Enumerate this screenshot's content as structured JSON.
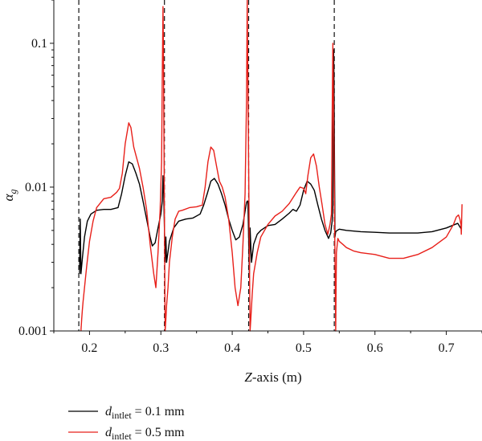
{
  "chart_data": {
    "type": "line",
    "xlabel": "Z-axis (m)",
    "xlabel_italic": "Z",
    "xlabel_rest": "-axis (m)",
    "ylabel": "αg",
    "ylabel_main": "α",
    "ylabel_sub": "g",
    "xscale": "linear",
    "yscale": "log",
    "xlim": [
      0.15,
      0.75
    ],
    "ylim": [
      0.001,
      0.2
    ],
    "xticks": [
      0.2,
      0.3,
      0.4,
      0.5,
      0.6,
      0.7
    ],
    "xtick_labels": [
      "0.2",
      "0.3",
      "0.4",
      "0.5",
      "0.6",
      "0.7"
    ],
    "yticks": [
      0.001,
      0.01,
      0.1
    ],
    "ytick_labels": [
      "0.001",
      "0.01",
      "0.1"
    ],
    "grid": false,
    "legend_position": "below",
    "vertical_dashed_lines": [
      0.185,
      0.305,
      0.423,
      0.543
    ],
    "series": [
      {
        "legend_main": "d",
        "legend_sub": "intlet",
        "legend_value": " = 0.1 mm",
        "color": "#000000",
        "x": [
          0.186,
          0.187,
          0.188,
          0.19,
          0.193,
          0.197,
          0.202,
          0.21,
          0.22,
          0.23,
          0.24,
          0.245,
          0.25,
          0.255,
          0.26,
          0.265,
          0.27,
          0.275,
          0.28,
          0.285,
          0.288,
          0.292,
          0.296,
          0.3,
          0.302,
          0.303,
          0.304,
          0.306,
          0.307,
          0.308,
          0.312,
          0.318,
          0.325,
          0.335,
          0.345,
          0.355,
          0.36,
          0.365,
          0.37,
          0.375,
          0.38,
          0.385,
          0.39,
          0.395,
          0.4,
          0.405,
          0.41,
          0.415,
          0.418,
          0.42,
          0.421,
          0.422,
          0.424,
          0.425,
          0.427,
          0.43,
          0.435,
          0.44,
          0.445,
          0.45,
          0.46,
          0.47,
          0.48,
          0.485,
          0.49,
          0.495,
          0.5,
          0.505,
          0.51,
          0.515,
          0.52,
          0.525,
          0.53,
          0.535,
          0.538,
          0.54,
          0.541,
          0.542,
          0.5425,
          0.544,
          0.545,
          0.547,
          0.55,
          0.56,
          0.58,
          0.6,
          0.62,
          0.64,
          0.66,
          0.68,
          0.7,
          0.712,
          0.716,
          0.718,
          0.72,
          0.721
        ],
        "y": [
          0.0025,
          0.006,
          0.0025,
          0.0032,
          0.0045,
          0.0058,
          0.0065,
          0.0069,
          0.007,
          0.007,
          0.0072,
          0.009,
          0.012,
          0.015,
          0.0145,
          0.0125,
          0.0105,
          0.008,
          0.006,
          0.0045,
          0.0039,
          0.0041,
          0.0052,
          0.0065,
          0.008,
          0.012,
          0.009,
          0.003,
          0.0045,
          0.003,
          0.0042,
          0.0052,
          0.0058,
          0.006,
          0.0061,
          0.0065,
          0.0075,
          0.009,
          0.011,
          0.0115,
          0.0105,
          0.009,
          0.0075,
          0.006,
          0.005,
          0.0043,
          0.0045,
          0.0055,
          0.0068,
          0.0078,
          0.008,
          0.008,
          0.0025,
          0.0052,
          0.003,
          0.004,
          0.0047,
          0.005,
          0.0052,
          0.0054,
          0.0055,
          0.006,
          0.0066,
          0.007,
          0.0068,
          0.0075,
          0.0095,
          0.011,
          0.0105,
          0.0095,
          0.0075,
          0.006,
          0.005,
          0.0044,
          0.0048,
          0.0058,
          0.0075,
          0.09,
          0.06,
          0.0045,
          0.0049,
          0.005,
          0.0051,
          0.005,
          0.0049,
          0.00485,
          0.0048,
          0.0048,
          0.0048,
          0.0049,
          0.0052,
          0.0055,
          0.0056,
          0.0054,
          0.0052,
          0.0051
        ]
      },
      {
        "legend_main": "d",
        "legend_sub": "intlet",
        "legend_value": " = 0.5 mm",
        "color": "#e8201a",
        "x": [
          0.188,
          0.189,
          0.19,
          0.191,
          0.193,
          0.196,
          0.2,
          0.205,
          0.21,
          0.22,
          0.23,
          0.238,
          0.242,
          0.246,
          0.25,
          0.255,
          0.258,
          0.262,
          0.266,
          0.27,
          0.275,
          0.28,
          0.285,
          0.29,
          0.293,
          0.296,
          0.299,
          0.301,
          0.302,
          0.303,
          0.3035,
          0.306,
          0.307,
          0.308,
          0.31,
          0.312,
          0.316,
          0.32,
          0.325,
          0.33,
          0.34,
          0.35,
          0.358,
          0.362,
          0.366,
          0.37,
          0.374,
          0.378,
          0.382,
          0.386,
          0.39,
          0.395,
          0.4,
          0.404,
          0.408,
          0.412,
          0.415,
          0.418,
          0.42,
          0.421,
          0.4215,
          0.425,
          0.426,
          0.428,
          0.43,
          0.435,
          0.44,
          0.45,
          0.46,
          0.47,
          0.48,
          0.49,
          0.495,
          0.5,
          0.503,
          0.506,
          0.51,
          0.514,
          0.518,
          0.522,
          0.526,
          0.53,
          0.534,
          0.537,
          0.539,
          0.54,
          0.541,
          0.545,
          0.546,
          0.548,
          0.55,
          0.555,
          0.56,
          0.57,
          0.58,
          0.6,
          0.62,
          0.64,
          0.66,
          0.68,
          0.7,
          0.71,
          0.714,
          0.717,
          0.719,
          0.7205,
          0.721,
          0.722
        ],
        "y": [
          0.001,
          0.0012,
          0.0014,
          0.0016,
          0.002,
          0.0028,
          0.0042,
          0.0058,
          0.0072,
          0.0083,
          0.0085,
          0.0092,
          0.0098,
          0.0125,
          0.02,
          0.028,
          0.026,
          0.019,
          0.016,
          0.0135,
          0.01,
          0.007,
          0.004,
          0.0025,
          0.002,
          0.0035,
          0.007,
          0.015,
          0.06,
          0.18,
          0.1,
          0.001,
          0.0012,
          0.0015,
          0.002,
          0.003,
          0.0045,
          0.006,
          0.0068,
          0.0069,
          0.0072,
          0.0073,
          0.0075,
          0.01,
          0.015,
          0.019,
          0.018,
          0.014,
          0.011,
          0.01,
          0.0085,
          0.006,
          0.0035,
          0.002,
          0.0015,
          0.002,
          0.004,
          0.009,
          0.04,
          0.2,
          0.1,
          0.001,
          0.0012,
          0.0018,
          0.0025,
          0.0035,
          0.0045,
          0.0055,
          0.0063,
          0.0068,
          0.0077,
          0.0092,
          0.01,
          0.0098,
          0.009,
          0.012,
          0.016,
          0.017,
          0.014,
          0.01,
          0.0075,
          0.0055,
          0.0047,
          0.0055,
          0.0065,
          0.03,
          0.1,
          0.001,
          0.0035,
          0.0044,
          0.0042,
          0.004,
          0.0038,
          0.0036,
          0.0035,
          0.0034,
          0.0032,
          0.0032,
          0.0034,
          0.0038,
          0.0045,
          0.0055,
          0.0062,
          0.0064,
          0.006,
          0.0055,
          0.0047,
          0.0076
        ]
      }
    ]
  }
}
